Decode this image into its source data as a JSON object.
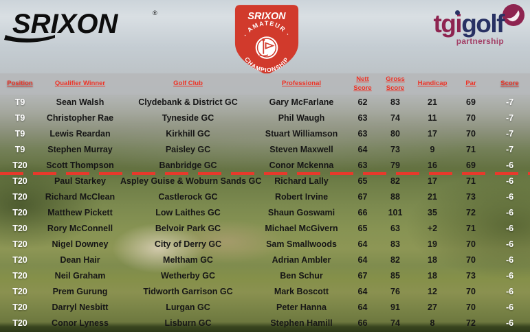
{
  "header": {
    "srixon_wordmark": "SRIXON",
    "registered_mark": "®",
    "badge": {
      "brand": "SRIXON",
      "arc_top": "· AMATEUR ·",
      "arc_bottom": "CHAMPIONSHIP",
      "center_icon": "golf-flag"
    },
    "tgi_logo": {
      "tgi": "tgi",
      "golf": "golf",
      "partnership": "partnership"
    }
  },
  "colors": {
    "column_header_red": "#ee3124",
    "badge_red": "#d13a2c",
    "cut_line_red": "#e8392b",
    "tgi_maroon": "#8e2450",
    "tgi_navy": "#283163",
    "header_band_gray": "#b6b8bb",
    "row_text_black": "#161616",
    "row_text_white": "#ffffff"
  },
  "table": {
    "columns": [
      {
        "key": "position",
        "label": "Position"
      },
      {
        "key": "winner",
        "label": "Qualifier Winner"
      },
      {
        "key": "club",
        "label": "Golf Club"
      },
      {
        "key": "professional",
        "label": "Professional"
      },
      {
        "key": "nett",
        "label": "Nett Score"
      },
      {
        "key": "gross",
        "label": "Gross Score"
      },
      {
        "key": "handicap",
        "label": "Handicap"
      },
      {
        "key": "par",
        "label": "Par"
      },
      {
        "key": "score",
        "label": "Score"
      }
    ],
    "cut_line": {
      "after_row_index": 5
    },
    "rows": [
      {
        "position": "T9",
        "winner": "Sean Walsh",
        "club": "Clydebank & District GC",
        "professional": "Gary McFarlane",
        "nett": "62",
        "gross": "83",
        "handicap": "21",
        "par": "69",
        "score": "-7"
      },
      {
        "position": "T9",
        "winner": "Christopher Rae",
        "club": "Tyneside GC",
        "professional": "Phil Waugh",
        "nett": "63",
        "gross": "74",
        "handicap": "11",
        "par": "70",
        "score": "-7"
      },
      {
        "position": "T9",
        "winner": "Lewis Reardan",
        "club": "Kirkhill GC",
        "professional": "Stuart Williamson",
        "nett": "63",
        "gross": "80",
        "handicap": "17",
        "par": "70",
        "score": "-7"
      },
      {
        "position": "T9",
        "winner": "Stephen Murray",
        "club": "Paisley GC",
        "professional": "Steven Maxwell",
        "nett": "64",
        "gross": "73",
        "handicap": "9",
        "par": "71",
        "score": "-7"
      },
      {
        "position": "T20",
        "winner": "Scott Thompson",
        "club": "Banbridge GC",
        "professional": "Conor Mckenna",
        "nett": "63",
        "gross": "79",
        "handicap": "16",
        "par": "69",
        "score": "-6"
      },
      {
        "position": "T20",
        "winner": "Paul Starkey",
        "club": "Aspley Guise & Woburn Sands GC",
        "professional": "Richard Lally",
        "nett": "65",
        "gross": "82",
        "handicap": "17",
        "par": "71",
        "score": "-6"
      },
      {
        "position": "T20",
        "winner": "Richard McClean",
        "club": "Castlerock GC",
        "professional": "Robert Irvine",
        "nett": "67",
        "gross": "88",
        "handicap": "21",
        "par": "73",
        "score": "-6"
      },
      {
        "position": "T20",
        "winner": "Matthew Pickett",
        "club": "Low Laithes GC",
        "professional": "Shaun Goswami",
        "nett": "66",
        "gross": "101",
        "handicap": "35",
        "par": "72",
        "score": "-6"
      },
      {
        "position": "T20",
        "winner": "Rory McConnell",
        "club": "Belvoir Park GC",
        "professional": "Michael McGivern",
        "nett": "65",
        "gross": "63",
        "handicap": "+2",
        "par": "71",
        "score": "-6"
      },
      {
        "position": "T20",
        "winner": "Nigel Downey",
        "club": "City of Derry GC",
        "professional": "Sam Smallwoods",
        "nett": "64",
        "gross": "83",
        "handicap": "19",
        "par": "70",
        "score": "-6"
      },
      {
        "position": "T20",
        "winner": "Dean Hair",
        "club": "Meltham GC",
        "professional": "Adrian Ambler",
        "nett": "64",
        "gross": "82",
        "handicap": "18",
        "par": "70",
        "score": "-6"
      },
      {
        "position": "T20",
        "winner": "Neil Graham",
        "club": "Wetherby GC",
        "professional": "Ben Schur",
        "nett": "67",
        "gross": "85",
        "handicap": "18",
        "par": "73",
        "score": "-6"
      },
      {
        "position": "T20",
        "winner": "Prem Gurung",
        "club": "Tidworth Garrison GC",
        "professional": "Mark Boscott",
        "nett": "64",
        "gross": "76",
        "handicap": "12",
        "par": "70",
        "score": "-6"
      },
      {
        "position": "T20",
        "winner": "Darryl Nesbitt",
        "club": "Lurgan GC",
        "professional": "Peter Hanna",
        "nett": "64",
        "gross": "91",
        "handicap": "27",
        "par": "70",
        "score": "-6"
      },
      {
        "position": "T20",
        "winner": "Conor Lyness",
        "club": "Lisburn GC",
        "professional": "Stephen Hamill",
        "nett": "66",
        "gross": "74",
        "handicap": "8",
        "par": "72",
        "score": "-6"
      }
    ]
  }
}
